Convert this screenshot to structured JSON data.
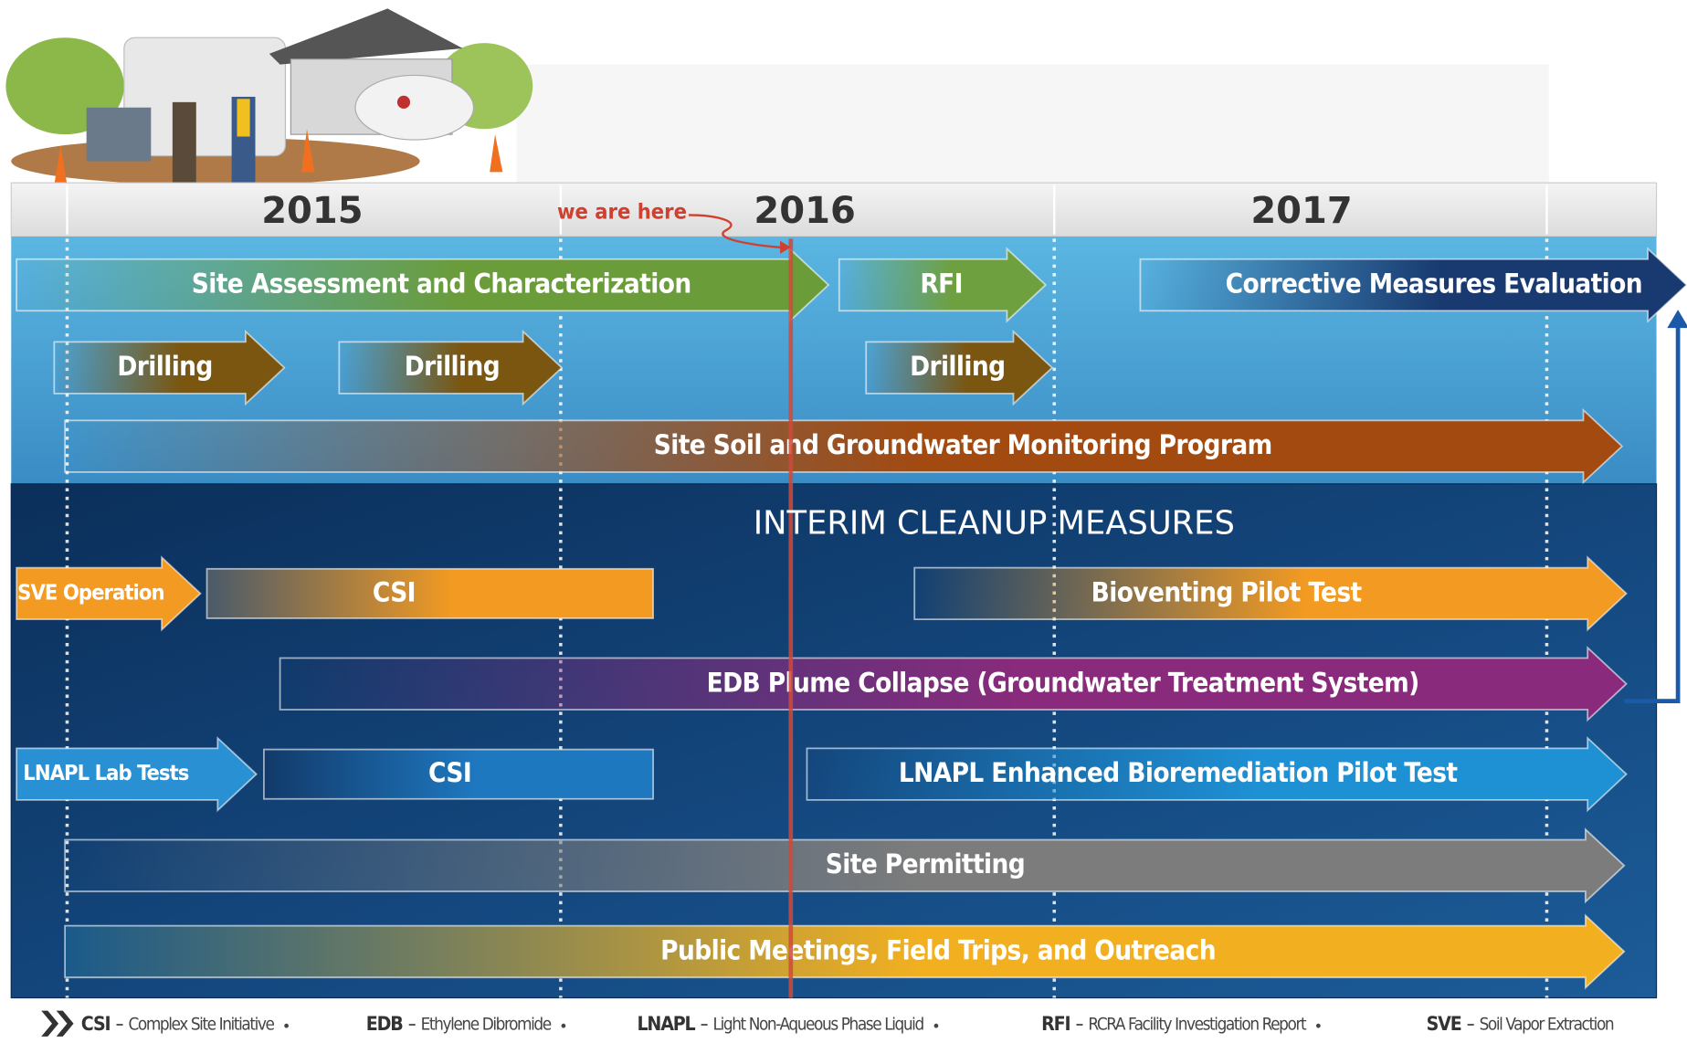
{
  "header": {
    "years": [
      "2015",
      "2016",
      "2017"
    ],
    "marker": "we are here"
  },
  "upper": {
    "bars": [
      "Site Assessment and Characterization",
      "RFI",
      "Corrective Measures Evaluation",
      "Drilling",
      "Drilling",
      "Drilling",
      "Site Soil and Groundwater Monitoring Program"
    ]
  },
  "lower": {
    "title": "INTERIM CLEANUP MEASURES",
    "bars": [
      "SVE Operation",
      "CSI",
      "Bioventing Pilot Test",
      "EDB Plume Collapse (Groundwater Treatment System)",
      "LNAPL Lab Tests",
      "CSI",
      "LNAPL Enhanced Bioremediation Pilot Test",
      "Site Permitting",
      "Public Meetings, Field Trips, and Outreach"
    ]
  },
  "legend": [
    {
      "abbr": "CSI",
      "definition": "Complex Site Initiative"
    },
    {
      "abbr": "EDB",
      "definition": "Ethylene Dibromide"
    },
    {
      "abbr": "LNAPL",
      "definition": "Light Non-Aqueous Phase Liquid"
    },
    {
      "abbr": "RFI",
      "definition": "RCRA Facility Investigation Report"
    },
    {
      "abbr": "SVE",
      "definition": "Soil Vapor Extraction"
    }
  ]
}
